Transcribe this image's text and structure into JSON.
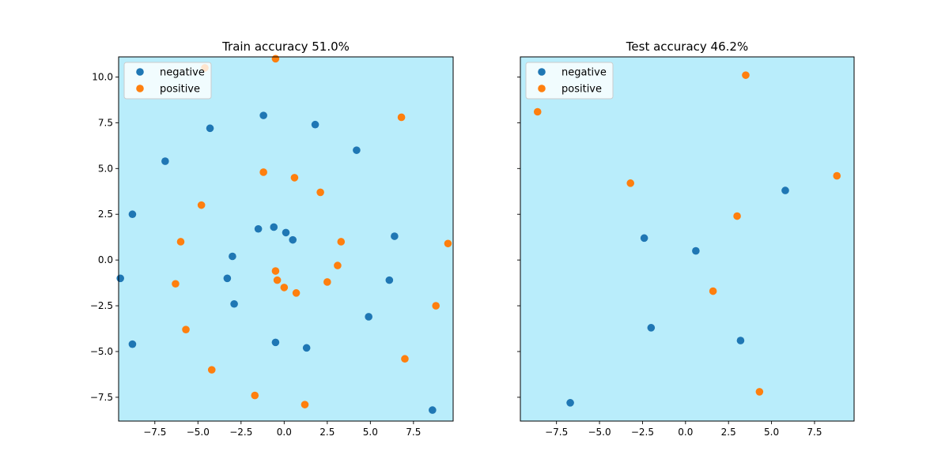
{
  "chart_data": [
    {
      "type": "scatter",
      "title": "Train accuracy 51.0%",
      "background_color": "#b9edfb",
      "xlim": [
        -9.6,
        9.8
      ],
      "ylim": [
        -8.8,
        11.1
      ],
      "xticks": [
        -7.5,
        -5.0,
        -2.5,
        0.0,
        2.5,
        5.0,
        7.5
      ],
      "yticks": [
        -7.5,
        -5.0,
        -2.5,
        0.0,
        2.5,
        5.0,
        7.5,
        10.0
      ],
      "legend": "top-left",
      "series": [
        {
          "name": "negative",
          "color": "#1f77b4",
          "x": [
            -1.2,
            1.8,
            -4.3,
            4.2,
            -6.9,
            -8.8,
            -1.5,
            -0.6,
            0.1,
            0.5,
            6.4,
            -3.0,
            -3.3,
            -9.5,
            6.1,
            -2.9,
            4.9,
            -8.8,
            -0.5,
            1.3,
            8.6
          ],
          "y": [
            7.9,
            7.4,
            7.2,
            6.0,
            5.4,
            2.5,
            1.7,
            1.8,
            1.5,
            1.1,
            1.3,
            0.2,
            -1.0,
            -1.0,
            -1.1,
            -2.4,
            -3.1,
            -4.6,
            -4.5,
            -4.8,
            -8.2
          ]
        },
        {
          "name": "positive",
          "color": "#ff7f0e",
          "x": [
            -0.5,
            -4.6,
            6.8,
            -1.2,
            0.6,
            2.1,
            -4.8,
            -6.0,
            3.3,
            9.5,
            3.1,
            -0.5,
            -0.4,
            -6.3,
            2.5,
            0.0,
            0.7,
            -5.7,
            8.8,
            -4.2,
            7.0,
            -1.7,
            1.2
          ],
          "y": [
            11.0,
            10.5,
            7.8,
            4.8,
            4.5,
            3.7,
            3.0,
            1.0,
            1.0,
            0.9,
            -0.3,
            -0.6,
            -1.1,
            -1.3,
            -1.2,
            -1.5,
            -1.8,
            -3.8,
            -2.5,
            -6.0,
            -5.4,
            -7.4,
            -7.9
          ]
        }
      ]
    },
    {
      "type": "scatter",
      "title": "Test accuracy 46.2%",
      "background_color": "#b9edfb",
      "xlim": [
        -9.6,
        9.8
      ],
      "ylim": [
        -8.8,
        11.1
      ],
      "xticks": [
        -7.5,
        -5.0,
        -2.5,
        0.0,
        2.5,
        5.0,
        7.5
      ],
      "yticks": [],
      "legend": "top-left",
      "series": [
        {
          "name": "negative",
          "color": "#1f77b4",
          "x": [
            5.8,
            -2.4,
            0.6,
            -2.0,
            3.2,
            -6.7
          ],
          "y": [
            3.8,
            1.2,
            0.5,
            -3.7,
            -4.4,
            -7.8
          ]
        },
        {
          "name": "positive",
          "color": "#ff7f0e",
          "x": [
            3.5,
            -8.6,
            8.8,
            -3.2,
            3.0,
            1.6,
            4.3
          ],
          "y": [
            10.1,
            8.1,
            4.6,
            4.2,
            2.4,
            -1.7,
            -7.2
          ]
        }
      ]
    }
  ]
}
